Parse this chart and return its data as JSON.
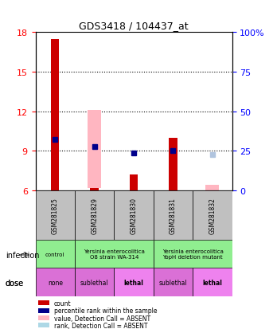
{
  "title": "GDS3418 / 104437_at",
  "samples": [
    "GSM281825",
    "GSM281829",
    "GSM281830",
    "GSM281831",
    "GSM281832"
  ],
  "ylim_left": [
    6,
    18
  ],
  "ylim_right": [
    0,
    100
  ],
  "yticks_left": [
    6,
    9,
    12,
    15,
    18
  ],
  "yticks_right": [
    0,
    25,
    50,
    75,
    100
  ],
  "bar_data": {
    "red_bottom": [
      6,
      6,
      6,
      6,
      6
    ],
    "red_top": [
      17.5,
      6.2,
      7.2,
      10.0,
      6
    ],
    "pink_bottom": [
      6,
      6.2,
      6,
      6,
      6
    ],
    "pink_top": [
      6,
      12.1,
      6,
      6,
      6.4
    ],
    "blue_val": [
      9.9,
      9.3,
      8.85,
      9.05,
      null
    ],
    "blue_absent": [
      null,
      null,
      null,
      null,
      8.75
    ],
    "red_present": [
      true,
      false,
      false,
      true,
      false
    ],
    "pink_present": [
      false,
      true,
      false,
      false,
      true
    ]
  },
  "infection_labels": [
    {
      "text": "control",
      "cols": [
        0,
        0
      ],
      "color": "#90ee90"
    },
    {
      "text": "Yersinia enterocolitica\nO8 strain WA-314",
      "cols": [
        1,
        2
      ],
      "color": "#90ee90"
    },
    {
      "text": "Yersinia enterocolitica\nYopH deletion mutant",
      "cols": [
        3,
        4
      ],
      "color": "#90ee90"
    }
  ],
  "dose_labels": [
    {
      "text": "none",
      "cols": [
        0,
        0
      ],
      "color": "#da70d6"
    },
    {
      "text": "sublethal",
      "cols": [
        1,
        1
      ],
      "color": "#da70d6"
    },
    {
      "text": "lethal",
      "cols": [
        2,
        2
      ],
      "color": "#ee82ee"
    },
    {
      "text": "sublethal",
      "cols": [
        3,
        3
      ],
      "color": "#da70d6"
    },
    {
      "text": "lethal",
      "cols": [
        4,
        4
      ],
      "color": "#ee82ee"
    }
  ],
  "legend_items": [
    {
      "color": "#cc0000",
      "label": "count"
    },
    {
      "color": "#00008b",
      "label": "percentile rank within the sample"
    },
    {
      "color": "#ffb6c1",
      "label": "value, Detection Call = ABSENT"
    },
    {
      "color": "#add8e6",
      "label": "rank, Detection Call = ABSENT"
    }
  ],
  "colors": {
    "red_bar": "#cc0000",
    "pink_bar": "#ffb6c1",
    "blue_dot": "#00008b",
    "blue_absent": "#b0c4de",
    "grid": "#000000",
    "sample_bg": "#c0c0c0",
    "infection_bg": "#90ee90",
    "dose_lethal": "#ee82ee",
    "dose_sublethal": "#da70d6",
    "dose_none": "#da70d6"
  }
}
